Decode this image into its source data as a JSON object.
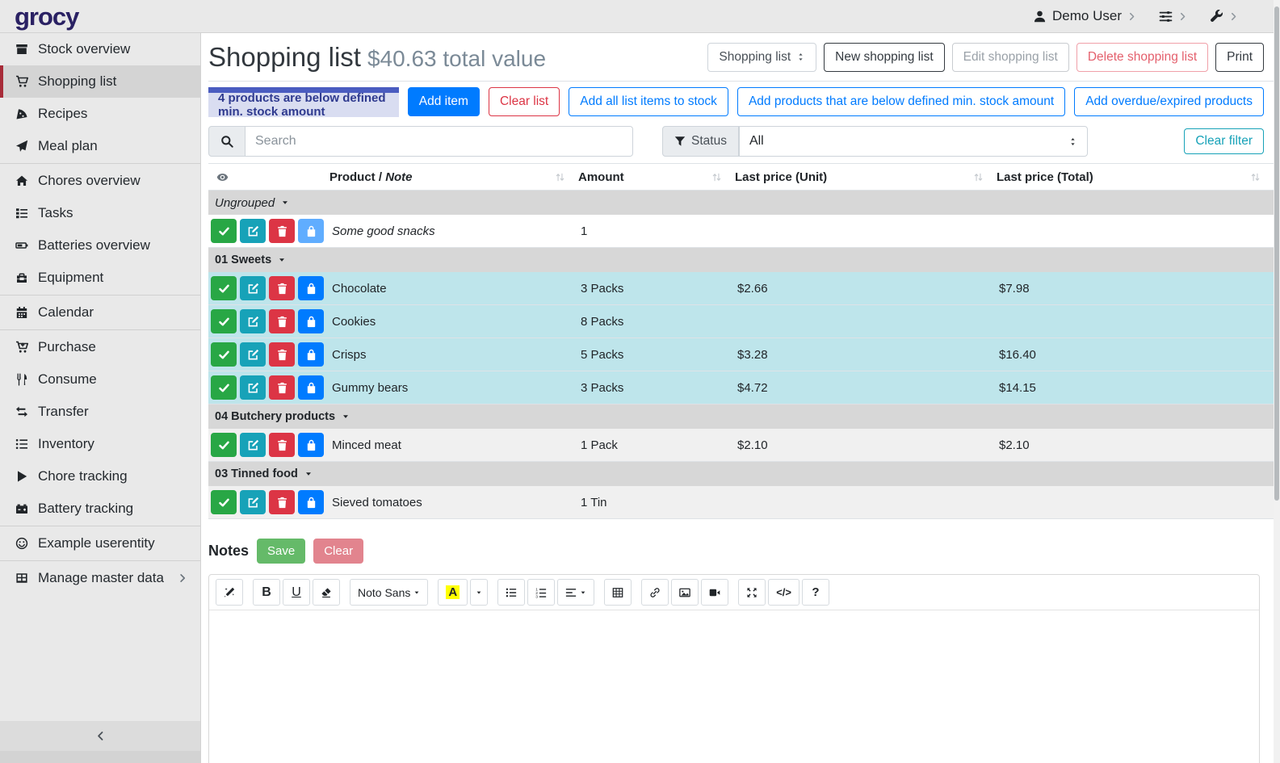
{
  "header": {
    "logo": "grocy",
    "user": "Demo User"
  },
  "sidebar": {
    "items": [
      {
        "label": "Stock overview",
        "icon": "box"
      },
      {
        "label": "Shopping list",
        "icon": "cart",
        "active": true
      },
      {
        "label": "Recipes",
        "icon": "pizza"
      },
      {
        "label": "Meal plan",
        "icon": "paper-plane",
        "divider_after": true
      },
      {
        "label": "Chores overview",
        "icon": "home"
      },
      {
        "label": "Tasks",
        "icon": "tasks"
      },
      {
        "label": "Batteries overview",
        "icon": "battery"
      },
      {
        "label": "Equipment",
        "icon": "toolbox",
        "divider_after": true
      },
      {
        "label": "Calendar",
        "icon": "calendar",
        "divider_after": true
      },
      {
        "label": "Purchase",
        "icon": "cart-plus"
      },
      {
        "label": "Consume",
        "icon": "utensils"
      },
      {
        "label": "Transfer",
        "icon": "exchange"
      },
      {
        "label": "Inventory",
        "icon": "list"
      },
      {
        "label": "Chore tracking",
        "icon": "play"
      },
      {
        "label": "Battery tracking",
        "icon": "car-battery",
        "divider_after": true
      },
      {
        "label": "Example userentity",
        "icon": "smile",
        "divider_after": true
      },
      {
        "label": "Manage master data",
        "icon": "table",
        "chevron": true
      }
    ]
  },
  "page": {
    "title": "Shopping list",
    "subtitle": "$40.63 total value",
    "list_select": "Shopping list",
    "buttons": {
      "new": "New shopping list",
      "edit": "Edit shopping list",
      "delete": "Delete shopping list",
      "print": "Print"
    },
    "banner": "4 products are below defined min. stock amount",
    "actions": [
      "Add item",
      "Clear list",
      "Add all list items to stock",
      "Add products that are below defined min. stock amount",
      "Add overdue/expired products"
    ],
    "filters": {
      "search_placeholder": "Search",
      "status_label": "Status",
      "status_value": "All",
      "clear_filter": "Clear filter"
    }
  },
  "table": {
    "columns": {
      "product": "Product /",
      "note": "Note",
      "amount": "Amount",
      "unit": "Last price (Unit)",
      "total": "Last price (Total)"
    },
    "groups": [
      {
        "name": "Ungrouped",
        "italic": true,
        "rows": [
          {
            "product": "Some good snacks",
            "note": true,
            "amount": "1",
            "unit_price": "",
            "total_price": "",
            "shop_dim": true
          }
        ]
      },
      {
        "name": "01 Sweets",
        "rows": [
          {
            "product": "Chocolate",
            "amount": "3 Packs",
            "unit_price": "$2.66",
            "total_price": "$7.98",
            "highlight": true
          },
          {
            "product": "Cookies",
            "amount": "8 Packs",
            "unit_price": "",
            "total_price": "",
            "highlight": true
          },
          {
            "product": "Crisps",
            "amount": "5 Packs",
            "unit_price": "$3.28",
            "total_price": "$16.40",
            "highlight": true
          },
          {
            "product": "Gummy bears",
            "amount": "3 Packs",
            "unit_price": "$4.72",
            "total_price": "$14.15",
            "highlight": true
          }
        ]
      },
      {
        "name": "04 Butchery products",
        "rows": [
          {
            "product": "Minced meat",
            "amount": "1 Pack",
            "unit_price": "$2.10",
            "total_price": "$2.10",
            "striped": true
          }
        ]
      },
      {
        "name": "03 Tinned food",
        "rows": [
          {
            "product": "Sieved tomatoes",
            "amount": "1 Tin",
            "unit_price": "",
            "total_price": "",
            "striped": true
          }
        ]
      }
    ]
  },
  "notes": {
    "label": "Notes",
    "save": "Save",
    "clear": "Clear"
  },
  "editor": {
    "font_name": "Noto Sans",
    "bold": "B",
    "underline": "U",
    "color": "A",
    "code": "</>",
    "help": "?"
  },
  "colors": {
    "primary": "#007bff",
    "danger": "#dc3545",
    "success": "#28a745",
    "info": "#17a2b8",
    "highlight_row": "#bee5eb",
    "banner_bg": "#d9ddf1",
    "banner_bar": "#4a5cc0",
    "sidebar_bg": "#e9e9e9",
    "active_border": "#a72b38",
    "logo": "#2a2163"
  }
}
